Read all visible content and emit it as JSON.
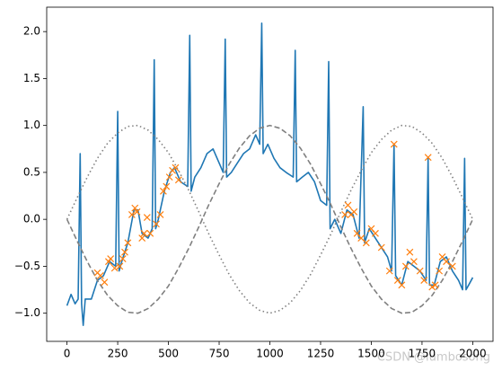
{
  "chart_data": {
    "type": "line",
    "xlim": [
      -100,
      2100
    ],
    "ylim": [
      -1.3,
      2.26
    ],
    "xticks": [
      0,
      250,
      500,
      750,
      1000,
      1250,
      1500,
      1750,
      2000
    ],
    "yticks": [
      {
        "value": -1,
        "label": "−1.0"
      },
      {
        "value": -0.5,
        "label": "−0.5"
      },
      {
        "value": 0,
        "label": "0.0"
      },
      {
        "value": 0.5,
        "label": "0.5"
      },
      {
        "value": 1,
        "label": "1.0"
      },
      {
        "value": 1.5,
        "label": "1.5"
      },
      {
        "value": 2,
        "label": "2.0"
      }
    ],
    "annotation": "CSDN @lumbosong",
    "series": [
      {
        "color": "#1f77b4",
        "style": "solid",
        "x": [
          0,
          20,
          40,
          55,
          65,
          72,
          80,
          90,
          120,
          150,
          180,
          210,
          240,
          250,
          257,
          270,
          300,
          330,
          350,
          370,
          400,
          420,
          430,
          437,
          450,
          480,
          510,
          530,
          560,
          595,
          605,
          612,
          630,
          660,
          690,
          720,
          750,
          770,
          780,
          787,
          810,
          840,
          870,
          900,
          930,
          950,
          960,
          967,
          990,
          1020,
          1050,
          1080,
          1115,
          1125,
          1132,
          1160,
          1190,
          1220,
          1250,
          1280,
          1290,
          1297,
          1320,
          1350,
          1380,
          1410,
          1440,
          1460,
          1467,
          1490,
          1520,
          1550,
          1580,
          1600,
          1612,
          1620,
          1650,
          1680,
          1710,
          1740,
          1770,
          1780,
          1787,
          1810,
          1840,
          1870,
          1900,
          1930,
          1950,
          1960,
          1967,
          1980,
          2000
        ],
        "values": [
          -0.92,
          -0.8,
          -0.9,
          -0.85,
          0.7,
          -0.9,
          -1.13,
          -0.85,
          -0.85,
          -0.65,
          -0.6,
          -0.45,
          -0.5,
          1.15,
          -0.55,
          -0.45,
          -0.25,
          0.1,
          0.1,
          -0.15,
          -0.2,
          -0.1,
          1.7,
          -0.1,
          0.0,
          0.3,
          0.5,
          0.55,
          0.4,
          0.35,
          1.96,
          0.3,
          0.45,
          0.55,
          0.7,
          0.75,
          0.6,
          0.5,
          1.92,
          0.45,
          0.5,
          0.6,
          0.7,
          0.75,
          0.9,
          0.8,
          2.09,
          0.7,
          0.8,
          0.65,
          0.55,
          0.5,
          0.45,
          1.8,
          0.4,
          0.45,
          0.5,
          0.4,
          0.2,
          0.15,
          1.68,
          -0.1,
          0.0,
          -0.15,
          0.1,
          0.05,
          -0.2,
          1.2,
          -0.25,
          -0.1,
          -0.2,
          -0.3,
          -0.4,
          -0.55,
          0.8,
          -0.6,
          -0.7,
          -0.45,
          -0.5,
          -0.55,
          -0.65,
          0.65,
          -0.7,
          -0.7,
          -0.45,
          -0.4,
          -0.55,
          -0.65,
          -0.75,
          0.65,
          -0.75,
          -0.7,
          -0.62
        ]
      },
      {
        "color": "#808080",
        "style": "dashed",
        "x": [
          0,
          50,
          100,
          150,
          200,
          250,
          300,
          350,
          400,
          450,
          500,
          550,
          600,
          650,
          700,
          750,
          800,
          850,
          900,
          950,
          1000,
          1050,
          1100,
          1150,
          1200,
          1250,
          1300,
          1350,
          1400,
          1450,
          1500,
          1550,
          1600,
          1650,
          1700,
          1750,
          1800,
          1850,
          1900,
          1950,
          2000
        ],
        "values": [
          0,
          -0.23,
          -0.45,
          -0.65,
          -0.81,
          -0.92,
          -0.99,
          -1.0,
          -0.95,
          -0.85,
          -0.71,
          -0.52,
          -0.31,
          -0.08,
          0.16,
          0.38,
          0.59,
          0.76,
          0.89,
          0.97,
          1.0,
          0.97,
          0.89,
          0.76,
          0.59,
          0.38,
          0.16,
          -0.08,
          -0.31,
          -0.52,
          -0.71,
          -0.85,
          -0.95,
          -1.0,
          -0.99,
          -0.92,
          -0.81,
          -0.65,
          -0.45,
          -0.23,
          0
        ]
      },
      {
        "color": "#808080",
        "style": "dotted",
        "x": [
          0,
          50,
          100,
          150,
          200,
          250,
          300,
          350,
          400,
          450,
          500,
          550,
          600,
          650,
          700,
          750,
          800,
          850,
          900,
          950,
          1000,
          1050,
          1100,
          1150,
          1200,
          1250,
          1300,
          1350,
          1400,
          1450,
          1500,
          1550,
          1600,
          1650,
          1700,
          1750,
          1800,
          1850,
          1900,
          1950,
          2000
        ],
        "values": [
          0,
          0.23,
          0.45,
          0.65,
          0.81,
          0.92,
          0.99,
          1.0,
          0.95,
          0.85,
          0.71,
          0.52,
          0.31,
          0.08,
          -0.16,
          -0.38,
          -0.59,
          -0.76,
          -0.89,
          -0.97,
          -1.0,
          -0.97,
          -0.89,
          -0.76,
          -0.59,
          -0.38,
          -0.16,
          0.08,
          0.31,
          0.52,
          0.71,
          0.85,
          0.95,
          1.0,
          0.99,
          0.92,
          0.81,
          0.65,
          0.45,
          0.23,
          0
        ]
      },
      {
        "color": "#ff7f0e",
        "style": "none",
        "marker": "x",
        "x": [
          150,
          165,
          185,
          205,
          215,
          235,
          260,
          275,
          285,
          300,
          320,
          335,
          345,
          370,
          380,
          395,
          410,
          440,
          460,
          475,
          490,
          505,
          520,
          535,
          550,
          1370,
          1385,
          1400,
          1415,
          1430,
          1450,
          1475,
          1500,
          1520,
          1550,
          1590,
          1612,
          1630,
          1650,
          1670,
          1690,
          1710,
          1740,
          1760,
          1780,
          1800,
          1815,
          1835,
          1850,
          1870,
          1900
        ],
        "values": [
          -0.57,
          -0.6,
          -0.67,
          -0.45,
          -0.42,
          -0.52,
          -0.5,
          -0.42,
          -0.35,
          -0.25,
          0.05,
          0.12,
          0.08,
          -0.2,
          -0.15,
          0.02,
          -0.15,
          -0.05,
          0.05,
          0.3,
          0.35,
          0.45,
          0.52,
          0.55,
          0.42,
          0.05,
          0.15,
          0.05,
          0.08,
          -0.15,
          -0.2,
          -0.25,
          -0.1,
          -0.15,
          -0.3,
          -0.55,
          0.8,
          -0.65,
          -0.7,
          -0.5,
          -0.35,
          -0.45,
          -0.55,
          -0.65,
          0.66,
          -0.72,
          -0.7,
          -0.55,
          -0.4,
          -0.45,
          -0.5
        ]
      }
    ]
  }
}
